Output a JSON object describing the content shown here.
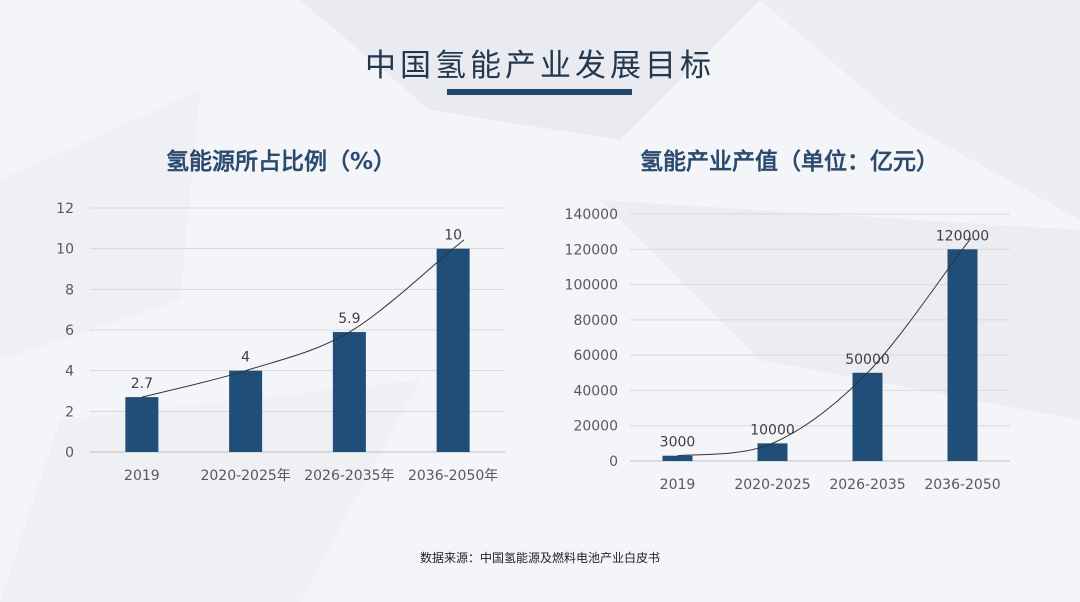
{
  "title": "中国氢能产业发展目标",
  "source": "数据来源：中国氢能源及燃料电池产业白皮书",
  "colors": {
    "bar": "#1f4e79",
    "trend": "#333333",
    "grid": "#d9d9d9",
    "accent": "#24476c"
  },
  "chart_data": [
    {
      "type": "bar",
      "title": "氢能源所占比例（%）",
      "categories": [
        "2019",
        "2020-2025年",
        "2026-2035年",
        "2036-2050年"
      ],
      "values": [
        2.7,
        4,
        5.9,
        10
      ],
      "value_labels": [
        "2.7",
        "4",
        "5.9",
        "10"
      ],
      "ylim": [
        0,
        12
      ],
      "yticks": [
        "0",
        "2",
        "4",
        "6",
        "8",
        "10",
        "12"
      ],
      "trendline": true,
      "grid": true
    },
    {
      "type": "bar",
      "title": "氢能产业产值（单位：亿元）",
      "categories": [
        "2019",
        "2020-2025",
        "2026-2035",
        "2036-2050"
      ],
      "values": [
        3000,
        10000,
        50000,
        120000
      ],
      "value_labels": [
        "3000",
        "10000",
        "50000",
        "120000"
      ],
      "ylim": [
        0,
        140000
      ],
      "yticks": [
        "0",
        "20000",
        "40000",
        "60000",
        "80000",
        "100000",
        "120000",
        "140000"
      ],
      "trendline": true,
      "grid": true
    }
  ]
}
